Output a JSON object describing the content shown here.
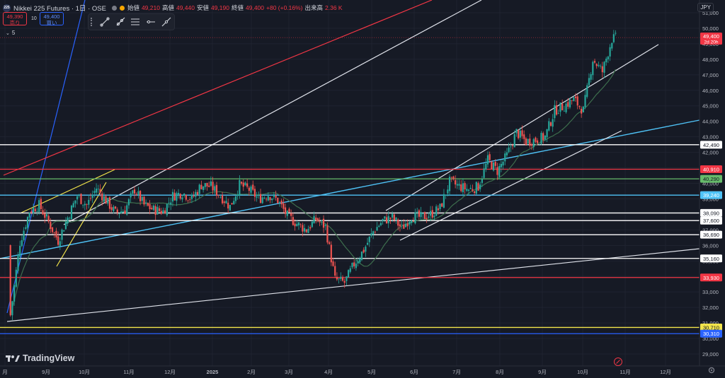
{
  "header": {
    "symbol_logo": "225",
    "symbol_title": "Nikkei 225 Futures · 1日 · OSE",
    "ohlc": [
      {
        "label": "始値",
        "value": "49,210"
      },
      {
        "label": "高値",
        "value": "49,440"
      },
      {
        "label": "安値",
        "value": "49,190"
      },
      {
        "label": "終値",
        "value": "49,400"
      }
    ],
    "change": "+80 (+0.16%)",
    "volume_label": "出来高",
    "volume_value": "2.36 K"
  },
  "trade": {
    "sell_price": "49,390",
    "sell_label": "売り",
    "spread": "10",
    "buy_price": "49,400",
    "buy_label": "買い"
  },
  "indicator_label": "5",
  "currency": "JPY",
  "brand": "TradingView",
  "colors": {
    "background": "#161a25",
    "up": "#26a69a",
    "down": "#ef5350",
    "red_line": "#f23645",
    "blue_line": "#2962ff",
    "cyan_line": "#4fc3f7",
    "green_line": "#66bb6a",
    "yellow_line": "#f2e44b",
    "ma_line": "#3d6e4d"
  },
  "chart_data": {
    "type": "candlestick",
    "y_ticks": [
      "51,000",
      "50,000",
      "49,000",
      "48,000",
      "47,000",
      "46,000",
      "45,000",
      "44,000",
      "43,000",
      "42,000",
      "41,000",
      "40,000",
      "39,000",
      "38,000",
      "37,000",
      "36,000",
      "35,000",
      "34,000",
      "33,000",
      "32,000",
      "31,000",
      "30,000",
      "29,000"
    ],
    "x_ticks": [
      "月",
      "9月",
      "10月",
      "11月",
      "12月",
      "2025",
      "2月",
      "3月",
      "4月",
      "5月",
      "6月",
      "7月",
      "8月",
      "9月",
      "10月",
      "11月",
      "12月"
    ],
    "ylim": [
      28500,
      51700
    ],
    "last_price": {
      "value": "49,400",
      "countdown": "2d 20h"
    },
    "horizontal_levels": [
      {
        "value": 42490,
        "label": "42,490",
        "color": "#ffffff"
      },
      {
        "value": 40910,
        "label": "40,910",
        "color": "#f23645"
      },
      {
        "value": 40290,
        "label": "40,290",
        "color": "#66bb6a"
      },
      {
        "value": 39240,
        "label": "39,240",
        "color": "#4fc3f7"
      },
      {
        "value": 38090,
        "label": "38,090",
        "color": "#ffffff"
      },
      {
        "value": 37600,
        "label": "37,600",
        "color": "#ffffff"
      },
      {
        "value": 36690,
        "label": "36,690",
        "color": "#ffffff"
      },
      {
        "value": 35160,
        "label": "35,160",
        "color": "#ffffff"
      },
      {
        "value": 33930,
        "label": "33,930",
        "color": "#f23645"
      },
      {
        "value": 30710,
        "label": "30,710",
        "color": "#f2e44b"
      },
      {
        "value": 30310,
        "label": "30,310",
        "color": "#2962ff"
      }
    ],
    "close_series": [
      {
        "x": "2024-08-05",
        "close": 31500
      },
      {
        "x": "2024-08-12",
        "close": 36200
      },
      {
        "x": "2024-08-19",
        "close": 38200
      },
      {
        "x": "2024-08-26",
        "close": 38600
      },
      {
        "x": "2024-09-02",
        "close": 37500
      },
      {
        "x": "2024-09-09",
        "close": 36300
      },
      {
        "x": "2024-09-16",
        "close": 37800
      },
      {
        "x": "2024-09-23",
        "close": 39200
      },
      {
        "x": "2024-09-30",
        "close": 38600
      },
      {
        "x": "2024-10-07",
        "close": 39700
      },
      {
        "x": "2024-10-14",
        "close": 38900
      },
      {
        "x": "2024-10-21",
        "close": 38100
      },
      {
        "x": "2024-10-28",
        "close": 38300
      },
      {
        "x": "2024-11-04",
        "close": 39600
      },
      {
        "x": "2024-11-11",
        "close": 38600
      },
      {
        "x": "2024-11-18",
        "close": 38300
      },
      {
        "x": "2024-11-25",
        "close": 38200
      },
      {
        "x": "2024-12-02",
        "close": 39200
      },
      {
        "x": "2024-12-09",
        "close": 39400
      },
      {
        "x": "2024-12-16",
        "close": 39000
      },
      {
        "x": "2024-12-23",
        "close": 39900
      },
      {
        "x": "2024-12-30",
        "close": 39800
      },
      {
        "x": "2025-01-06",
        "close": 39200
      },
      {
        "x": "2025-01-13",
        "close": 38500
      },
      {
        "x": "2025-01-20",
        "close": 39900
      },
      {
        "x": "2025-01-27",
        "close": 39600
      },
      {
        "x": "2025-02-03",
        "close": 39000
      },
      {
        "x": "2025-02-10",
        "close": 39300
      },
      {
        "x": "2025-02-17",
        "close": 38900
      },
      {
        "x": "2025-02-24",
        "close": 37900
      },
      {
        "x": "2025-03-03",
        "close": 37400
      },
      {
        "x": "2025-03-10",
        "close": 37000
      },
      {
        "x": "2025-03-17",
        "close": 37700
      },
      {
        "x": "2025-03-24",
        "close": 37200
      },
      {
        "x": "2025-03-31",
        "close": 33800
      },
      {
        "x": "2025-04-07",
        "close": 33600
      },
      {
        "x": "2025-04-14",
        "close": 34800
      },
      {
        "x": "2025-04-21",
        "close": 35700
      },
      {
        "x": "2025-04-28",
        "close": 36900
      },
      {
        "x": "2025-05-05",
        "close": 37600
      },
      {
        "x": "2025-05-12",
        "close": 37800
      },
      {
        "x": "2025-05-19",
        "close": 37100
      },
      {
        "x": "2025-05-26",
        "close": 37900
      },
      {
        "x": "2025-06-02",
        "close": 37800
      },
      {
        "x": "2025-06-09",
        "close": 38000
      },
      {
        "x": "2025-06-16",
        "close": 38400
      },
      {
        "x": "2025-06-23",
        "close": 40100
      },
      {
        "x": "2025-06-30",
        "close": 39800
      },
      {
        "x": "2025-07-07",
        "close": 39600
      },
      {
        "x": "2025-07-14",
        "close": 39800
      },
      {
        "x": "2025-07-21",
        "close": 41500
      },
      {
        "x": "2025-07-28",
        "close": 40800
      },
      {
        "x": "2025-08-04",
        "close": 41800
      },
      {
        "x": "2025-08-11",
        "close": 43300
      },
      {
        "x": "2025-08-18",
        "close": 42700
      },
      {
        "x": "2025-08-25",
        "close": 42800
      },
      {
        "x": "2025-09-01",
        "close": 43000
      },
      {
        "x": "2025-09-08",
        "close": 44700
      },
      {
        "x": "2025-09-15",
        "close": 45000
      },
      {
        "x": "2025-09-22",
        "close": 45400
      },
      {
        "x": "2025-09-29",
        "close": 44700
      },
      {
        "x": "2025-10-06",
        "close": 48000
      },
      {
        "x": "2025-10-13",
        "close": 47200
      },
      {
        "x": "2025-10-20",
        "close": 49300
      },
      {
        "x": "2025-10-24",
        "close": 49400
      }
    ]
  }
}
